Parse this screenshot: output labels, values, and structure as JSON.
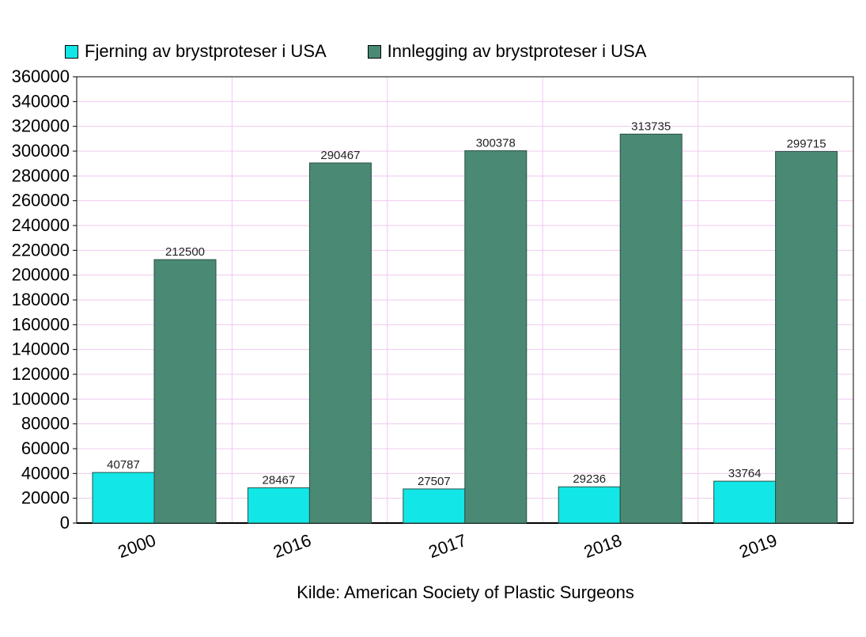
{
  "chart_data": {
    "type": "bar",
    "categories": [
      "2000",
      "2016",
      "2017",
      "2018",
      "2019"
    ],
    "series": [
      {
        "name": "Fjerning av brystproteser i USA",
        "color": "#13e6e6",
        "values": [
          40787,
          28467,
          27507,
          29236,
          33764
        ]
      },
      {
        "name": "Innlegging av brystproteser i USA",
        "color": "#4a8a74",
        "values": [
          212500,
          290467,
          300378,
          313735,
          299715
        ]
      }
    ],
    "ylim": [
      0,
      360000
    ],
    "ytick_step": 20000,
    "grid": true,
    "gridline_color": "#f0c8f0",
    "legend_position": "top",
    "title": "",
    "xlabel": "",
    "ylabel": ""
  },
  "source_text": "Kilde: American Society of Plastic Surgeons"
}
